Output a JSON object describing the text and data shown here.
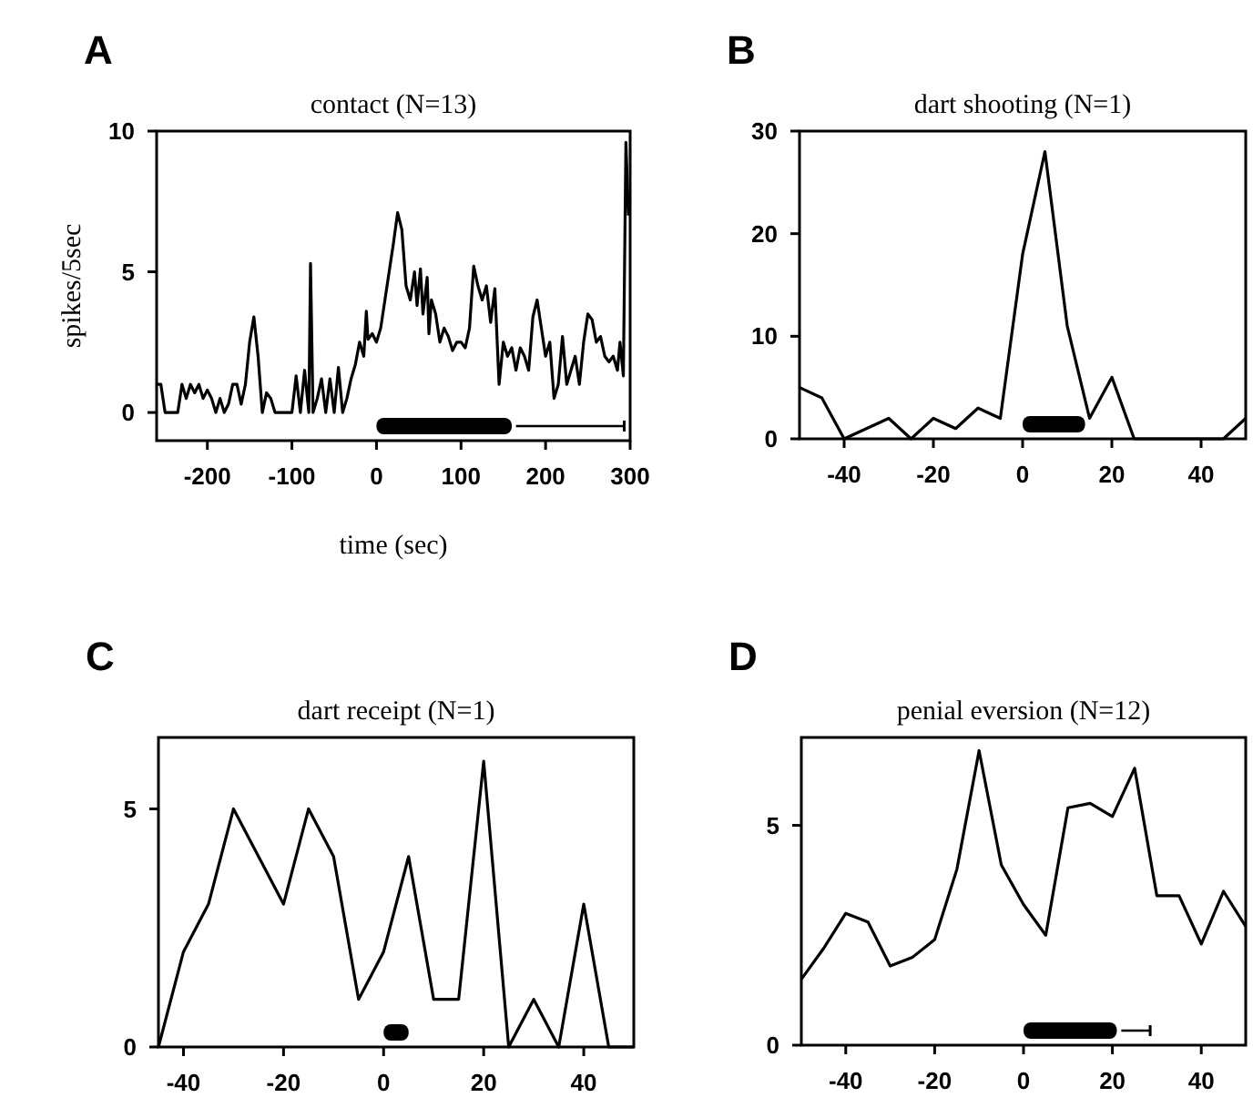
{
  "chart_data": [
    {
      "type": "line",
      "title": "contact (N=13)",
      "ylabel": "spikes/5sec",
      "xlabel": "time (sec)",
      "annotations": [
        "A"
      ],
      "x": [
        -260,
        -255,
        -250,
        -240,
        -235,
        -230,
        -225,
        -220,
        -215,
        -210,
        -205,
        -200,
        -195,
        -190,
        -185,
        -180,
        -175,
        -170,
        -165,
        -160,
        -155,
        -150,
        -145,
        -140,
        -135,
        -130,
        -125,
        -120,
        -110,
        -100,
        -95,
        -90,
        -85,
        -80,
        -78,
        -75,
        -70,
        -65,
        -60,
        -55,
        -50,
        -45,
        -40,
        -35,
        -30,
        -25,
        -20,
        -15,
        -12,
        -10,
        -5,
        0,
        5,
        10,
        15,
        20,
        25,
        30,
        35,
        40,
        45,
        48,
        52,
        55,
        60,
        62,
        65,
        70,
        75,
        80,
        85,
        90,
        95,
        100,
        105,
        110,
        115,
        120,
        125,
        130,
        135,
        140,
        145,
        150,
        155,
        160,
        165,
        170,
        175,
        180,
        185,
        190,
        195,
        200,
        205,
        210,
        215,
        220,
        225,
        230,
        235,
        240,
        245,
        250,
        255,
        260,
        265,
        270,
        275,
        280,
        285,
        288,
        292,
        295,
        298
      ],
      "series": [
        {
          "type": "line",
          "x": [
            165,
            293
          ],
          "color": "#000000",
          "values": [
            -0.48,
            -0.48
          ]
        },
        {
          "color": "#000000",
          "values": [
            1,
            1,
            0,
            0,
            0,
            1,
            0.5,
            1,
            0.7,
            1,
            0.5,
            0.8,
            0.5,
            0,
            0.5,
            0,
            0.3,
            1,
            1,
            0.3,
            1,
            2.5,
            3.4,
            2,
            0,
            0.7,
            0.5,
            0,
            0,
            0,
            1.3,
            0,
            1.5,
            0,
            5.3,
            0,
            0.5,
            1.2,
            0,
            1.2,
            0,
            1.6,
            0,
            0.5,
            1.2,
            1.7,
            2.5,
            2,
            3.6,
            2.6,
            2.8,
            2.5,
            3,
            4,
            5,
            6,
            7.1,
            6.5,
            4.5,
            4,
            5,
            3.8,
            5.1,
            3.5,
            4.8,
            2.8,
            4,
            3.5,
            2.5,
            3,
            2.7,
            2.2,
            2.5,
            2.5,
            2.3,
            3,
            5.2,
            4.5,
            4,
            4.5,
            3.2,
            4.4,
            1,
            2.5,
            2,
            2.3,
            1.5,
            2.3,
            2,
            1.5,
            3.4,
            4,
            3,
            2,
            2.5,
            0.5,
            1,
            2.7,
            1,
            1.5,
            2,
            1,
            2.5,
            3.5,
            3.3,
            2.5,
            2.7,
            2,
            1.8,
            2,
            1.5,
            2.5,
            1.3,
            9.6,
            7
          ]
        }
      ],
      "xlim": [
        -260,
        300
      ],
      "xticks": [
        -200,
        -100,
        0,
        100,
        200,
        300
      ],
      "ylim": [
        -1,
        10
      ],
      "yticks": [
        0,
        5,
        10
      ],
      "bands": [
        {
          "axis": "x",
          "from": 0,
          "to": 160,
          "color": "#000000"
        }
      ]
    },
    {
      "type": "line",
      "title": "dart shooting (N=1)",
      "annotations": [
        "B"
      ],
      "x": [
        -50,
        -45,
        -40,
        -35,
        -30,
        -25,
        -20,
        -15,
        -10,
        -5,
        0,
        5,
        10,
        15,
        20,
        25,
        30,
        40,
        45,
        50
      ],
      "series": [
        {
          "color": "#000000",
          "values": [
            5,
            4,
            0,
            1,
            2,
            0,
            2,
            1,
            3,
            2,
            18,
            28,
            11,
            2,
            6,
            0,
            0,
            0,
            0,
            2
          ]
        }
      ],
      "xlim": [
        -50,
        50
      ],
      "xticks": [
        -40,
        -20,
        0,
        20,
        40
      ],
      "ylim": [
        0,
        30
      ],
      "yticks": [
        0,
        10,
        20,
        30
      ],
      "bands": [
        {
          "axis": "x",
          "from": 0,
          "to": 14,
          "color": "#000000"
        }
      ]
    },
    {
      "type": "line",
      "title": "dart receipt (N=1)",
      "annotations": [
        "C"
      ],
      "x": [
        -45,
        -40,
        -35,
        -30,
        -25,
        -20,
        -15,
        -10,
        -5,
        0,
        5,
        10,
        15,
        20,
        25,
        30,
        35,
        40,
        45,
        50
      ],
      "series": [
        {
          "color": "#000000",
          "values": [
            0,
            2,
            3,
            5,
            4,
            3,
            5,
            4,
            1,
            2,
            4,
            1,
            1,
            6,
            0,
            1,
            0,
            3,
            0,
            0
          ]
        }
      ],
      "xlim": [
        -45,
        50
      ],
      "xticks": [
        -40,
        -20,
        0,
        20,
        40
      ],
      "ylim": [
        0,
        6.5
      ],
      "yticks": [
        0,
        5
      ],
      "bands": [
        {
          "axis": "x",
          "from": 0,
          "to": 5,
          "color": "#000000"
        }
      ]
    },
    {
      "type": "line",
      "title": "penial eversion (N=12)",
      "annotations": [
        "D"
      ],
      "x": [
        -50,
        -45,
        -40,
        -35,
        -30,
        -25,
        -20,
        -15,
        -10,
        -5,
        0,
        5,
        10,
        15,
        20,
        25,
        30,
        35,
        40,
        45,
        50
      ],
      "series": [
        {
          "type": "line",
          "x": [
            22,
            28.5
          ],
          "color": "#000000",
          "values": [
            0.33,
            0.33
          ]
        },
        {
          "color": "#000000",
          "values": [
            1.5,
            2.2,
            3,
            2.8,
            1.8,
            2,
            2.4,
            4,
            6.7,
            4.1,
            3.2,
            2.5,
            5.4,
            5.5,
            5.2,
            6.3,
            3.4,
            3.4,
            2.3,
            3.5,
            2.7
          ]
        }
      ],
      "xlim": [
        -50,
        50
      ],
      "xticks": [
        -40,
        -20,
        0,
        20,
        40
      ],
      "ylim": [
        0,
        7
      ],
      "yticks": [
        0,
        5
      ],
      "bands": [
        {
          "axis": "x",
          "from": 0,
          "to": 21,
          "color": "#000000"
        }
      ]
    }
  ]
}
